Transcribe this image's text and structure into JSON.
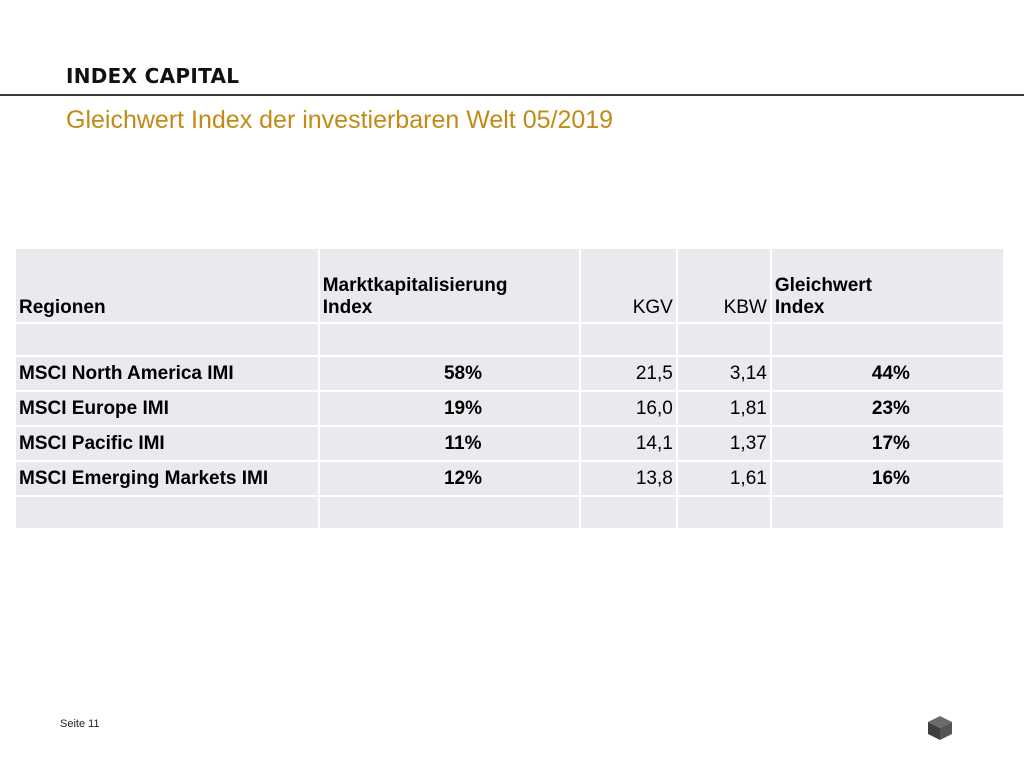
{
  "header": {
    "brand": "INDEX CAPITAL",
    "subtitle": "Gleichwert Index der investierbaren Welt 05/2019"
  },
  "table": {
    "headers": {
      "region": "Regionen",
      "mkt_line1": "Marktkapitalisierung",
      "mkt_line2": "Index",
      "kgv": "KGV",
      "kbw": "KBW",
      "gw_line1": "Gleichwert",
      "gw_line2": "Index"
    },
    "rows": [
      {
        "region": "MSCI North America IMI",
        "mkt": "58%",
        "kgv": "21,5",
        "kbw": "3,14",
        "gw": "44%"
      },
      {
        "region": "MSCI Europe IMI",
        "mkt": "19%",
        "kgv": "16,0",
        "kbw": "1,81",
        "gw": "23%"
      },
      {
        "region": "MSCI Pacific IMI",
        "mkt": "11%",
        "kgv": "14,1",
        "kbw": "1,37",
        "gw": "17%"
      },
      {
        "region": "MSCI Emerging Markets IMI",
        "mkt": "12%",
        "kgv": "13,8",
        "kbw": "1,61",
        "gw": "16%"
      }
    ]
  },
  "footer": {
    "page_label": "Seite 11"
  },
  "logo": {
    "icon": "cube-icon",
    "color": "#4a4a4a"
  },
  "colors": {
    "accent": "#c28a16",
    "cell_bg": "#e9e9ee"
  }
}
